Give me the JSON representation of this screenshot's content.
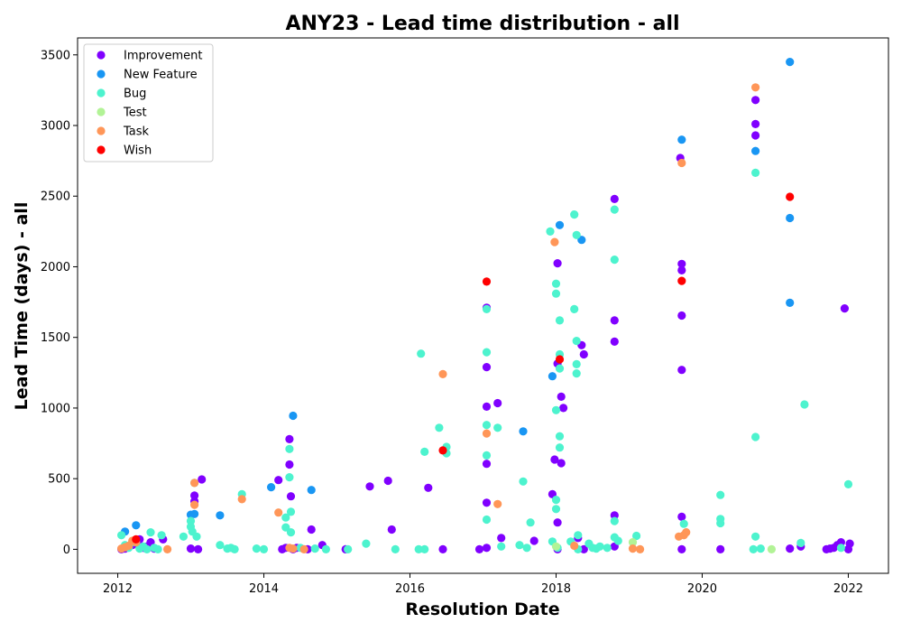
{
  "chart_data": {
    "type": "scatter",
    "title": "ANY23 - Lead time distribution - all",
    "xlabel": "Resolution Date",
    "ylabel": "Lead Time (days) - all",
    "xlim": [
      2011.45,
      2022.55
    ],
    "ylim": [
      -170,
      3620
    ],
    "xticks": [
      2012,
      2014,
      2016,
      2018,
      2020,
      2022
    ],
    "yticks": [
      0,
      500,
      1000,
      1500,
      2000,
      2500,
      3000,
      3500
    ],
    "grid": false,
    "legend_position": "upper-left",
    "series": [
      {
        "name": "Improvement",
        "color": "#8000ff",
        "points": [
          [
            2012.05,
            0
          ],
          [
            2012.1,
            5
          ],
          [
            2012.15,
            15
          ],
          [
            2012.2,
            30
          ],
          [
            2012.25,
            45
          ],
          [
            2012.3,
            70
          ],
          [
            2012.35,
            10
          ],
          [
            2012.4,
            20
          ],
          [
            2012.45,
            50
          ],
          [
            2012.5,
            5
          ],
          [
            2012.62,
            70
          ],
          [
            2013.0,
            5
          ],
          [
            2013.05,
            380
          ],
          [
            2013.05,
            340
          ],
          [
            2013.1,
            0
          ],
          [
            2013.15,
            495
          ],
          [
            2014.2,
            490
          ],
          [
            2014.25,
            0
          ],
          [
            2014.3,
            10
          ],
          [
            2014.35,
            780
          ],
          [
            2014.35,
            600
          ],
          [
            2014.37,
            375
          ],
          [
            2014.4,
            0
          ],
          [
            2014.45,
            10
          ],
          [
            2014.6,
            0
          ],
          [
            2014.65,
            140
          ],
          [
            2014.8,
            30
          ],
          [
            2015.12,
            0
          ],
          [
            2015.45,
            445
          ],
          [
            2015.7,
            485
          ],
          [
            2015.75,
            140
          ],
          [
            2016.25,
            435
          ],
          [
            2016.45,
            0
          ],
          [
            2016.95,
            0
          ],
          [
            2017.05,
            10
          ],
          [
            2017.05,
            1710
          ],
          [
            2017.05,
            1290
          ],
          [
            2017.05,
            1010
          ],
          [
            2017.05,
            605
          ],
          [
            2017.05,
            330
          ],
          [
            2017.2,
            1035
          ],
          [
            2017.25,
            80
          ],
          [
            2017.7,
            60
          ],
          [
            2017.95,
            390
          ],
          [
            2017.98,
            635
          ],
          [
            2018.02,
            2025
          ],
          [
            2018.02,
            1315
          ],
          [
            2018.02,
            190
          ],
          [
            2018.02,
            0
          ],
          [
            2018.07,
            1080
          ],
          [
            2018.07,
            610
          ],
          [
            2018.1,
            1000
          ],
          [
            2018.3,
            80
          ],
          [
            2018.35,
            1445
          ],
          [
            2018.38,
            1380
          ],
          [
            2018.38,
            0
          ],
          [
            2018.8,
            2480
          ],
          [
            2018.8,
            1620
          ],
          [
            2018.8,
            1470
          ],
          [
            2018.8,
            240
          ],
          [
            2018.8,
            20
          ],
          [
            2019.7,
            2770
          ],
          [
            2019.72,
            2020
          ],
          [
            2019.72,
            1975
          ],
          [
            2019.72,
            1655
          ],
          [
            2019.72,
            1270
          ],
          [
            2019.72,
            230
          ],
          [
            2019.72,
            0
          ],
          [
            2020.25,
            0
          ],
          [
            2020.73,
            3180
          ],
          [
            2020.73,
            3010
          ],
          [
            2020.73,
            2930
          ],
          [
            2021.2,
            5
          ],
          [
            2021.35,
            20
          ],
          [
            2021.7,
            0
          ],
          [
            2021.75,
            5
          ],
          [
            2021.8,
            10
          ],
          [
            2021.85,
            30
          ],
          [
            2021.9,
            50
          ],
          [
            2021.95,
            1705
          ],
          [
            2022.0,
            0
          ],
          [
            2022.02,
            40
          ]
        ]
      },
      {
        "name": "New Feature",
        "color": "#1996f3",
        "points": [
          [
            2012.1,
            125
          ],
          [
            2012.25,
            170
          ],
          [
            2013.0,
            245
          ],
          [
            2013.05,
            250
          ],
          [
            2013.4,
            240
          ],
          [
            2014.1,
            440
          ],
          [
            2014.4,
            945
          ],
          [
            2014.65,
            420
          ],
          [
            2017.55,
            835
          ],
          [
            2017.95,
            1225
          ],
          [
            2018.05,
            2295
          ],
          [
            2018.35,
            2190
          ],
          [
            2019.72,
            2900
          ],
          [
            2020.73,
            2820
          ],
          [
            2021.2,
            3450
          ],
          [
            2021.2,
            2345
          ],
          [
            2021.2,
            1745
          ]
        ]
      },
      {
        "name": "Bug",
        "color": "#4df3ce",
        "points": [
          [
            2012.05,
            100
          ],
          [
            2012.1,
            30
          ],
          [
            2012.15,
            10
          ],
          [
            2012.2,
            50
          ],
          [
            2012.3,
            5
          ],
          [
            2012.35,
            20
          ],
          [
            2012.4,
            0
          ],
          [
            2012.45,
            120
          ],
          [
            2012.5,
            10
          ],
          [
            2012.55,
            0
          ],
          [
            2012.6,
            100
          ],
          [
            2012.9,
            90
          ],
          [
            2013.0,
            200
          ],
          [
            2013.0,
            160
          ],
          [
            2013.02,
            125
          ],
          [
            2013.05,
            470
          ],
          [
            2013.08,
            90
          ],
          [
            2013.4,
            30
          ],
          [
            2013.5,
            5
          ],
          [
            2013.55,
            10
          ],
          [
            2013.6,
            0
          ],
          [
            2013.7,
            390
          ],
          [
            2013.9,
            5
          ],
          [
            2014.0,
            0
          ],
          [
            2014.3,
            225
          ],
          [
            2014.3,
            155
          ],
          [
            2014.35,
            710
          ],
          [
            2014.35,
            510
          ],
          [
            2014.37,
            265
          ],
          [
            2014.37,
            120
          ],
          [
            2014.5,
            10
          ],
          [
            2014.7,
            5
          ],
          [
            2014.85,
            0
          ],
          [
            2015.15,
            0
          ],
          [
            2015.4,
            40
          ],
          [
            2015.8,
            0
          ],
          [
            2016.12,
            0
          ],
          [
            2016.15,
            1385
          ],
          [
            2016.2,
            690
          ],
          [
            2016.2,
            0
          ],
          [
            2016.4,
            860
          ],
          [
            2016.5,
            725
          ],
          [
            2016.5,
            680
          ],
          [
            2017.05,
            1700
          ],
          [
            2017.05,
            1395
          ],
          [
            2017.05,
            880
          ],
          [
            2017.05,
            665
          ],
          [
            2017.05,
            210
          ],
          [
            2017.2,
            860
          ],
          [
            2017.25,
            20
          ],
          [
            2017.5,
            30
          ],
          [
            2017.55,
            480
          ],
          [
            2017.6,
            10
          ],
          [
            2017.65,
            190
          ],
          [
            2017.92,
            2250
          ],
          [
            2017.95,
            55
          ],
          [
            2018.0,
            1810
          ],
          [
            2018.0,
            1880
          ],
          [
            2018.0,
            985
          ],
          [
            2018.0,
            350
          ],
          [
            2018.0,
            285
          ],
          [
            2018.02,
            10
          ],
          [
            2018.05,
            1620
          ],
          [
            2018.05,
            1380
          ],
          [
            2018.05,
            1280
          ],
          [
            2018.05,
            800
          ],
          [
            2018.05,
            720
          ],
          [
            2018.2,
            55
          ],
          [
            2018.25,
            2370
          ],
          [
            2018.25,
            1700
          ],
          [
            2018.28,
            2225
          ],
          [
            2018.28,
            1475
          ],
          [
            2018.28,
            1310
          ],
          [
            2018.28,
            1245
          ],
          [
            2018.3,
            100
          ],
          [
            2018.3,
            0
          ],
          [
            2018.45,
            40
          ],
          [
            2018.5,
            10
          ],
          [
            2018.55,
            5
          ],
          [
            2018.6,
            20
          ],
          [
            2018.7,
            10
          ],
          [
            2018.8,
            2405
          ],
          [
            2018.8,
            2050
          ],
          [
            2018.8,
            200
          ],
          [
            2018.8,
            85
          ],
          [
            2018.85,
            60
          ],
          [
            2019.1,
            95
          ],
          [
            2019.75,
            180
          ],
          [
            2020.25,
            385
          ],
          [
            2020.25,
            215
          ],
          [
            2020.25,
            185
          ],
          [
            2020.7,
            0
          ],
          [
            2020.73,
            2665
          ],
          [
            2020.73,
            795
          ],
          [
            2020.73,
            90
          ],
          [
            2020.8,
            5
          ],
          [
            2021.35,
            45
          ],
          [
            2021.4,
            1025
          ],
          [
            2021.9,
            10
          ],
          [
            2022.0,
            460
          ]
        ]
      },
      {
        "name": "Test",
        "color": "#b2f396",
        "points": [
          [
            2018.0,
            20
          ],
          [
            2019.05,
            50
          ],
          [
            2020.95,
            0
          ]
        ]
      },
      {
        "name": "Task",
        "color": "#ff9658",
        "points": [
          [
            2012.05,
            5
          ],
          [
            2012.1,
            15
          ],
          [
            2012.15,
            25
          ],
          [
            2012.2,
            60
          ],
          [
            2012.25,
            50
          ],
          [
            2012.68,
            0
          ],
          [
            2013.05,
            470
          ],
          [
            2013.05,
            315
          ],
          [
            2013.7,
            355
          ],
          [
            2014.2,
            260
          ],
          [
            2014.35,
            10
          ],
          [
            2014.4,
            5
          ],
          [
            2014.55,
            0
          ],
          [
            2016.45,
            1240
          ],
          [
            2017.05,
            820
          ],
          [
            2017.2,
            320
          ],
          [
            2017.98,
            2175
          ],
          [
            2018.25,
            25
          ],
          [
            2019.05,
            5
          ],
          [
            2019.15,
            0
          ],
          [
            2019.68,
            90
          ],
          [
            2019.72,
            2735
          ],
          [
            2019.75,
            100
          ],
          [
            2019.78,
            120
          ],
          [
            2020.73,
            3270
          ]
        ]
      },
      {
        "name": "Wish",
        "color": "#ff0000",
        "points": [
          [
            2012.25,
            70
          ],
          [
            2016.45,
            700
          ],
          [
            2017.05,
            1895
          ],
          [
            2018.05,
            1345
          ],
          [
            2019.72,
            1900
          ],
          [
            2021.2,
            2495
          ]
        ]
      }
    ]
  }
}
